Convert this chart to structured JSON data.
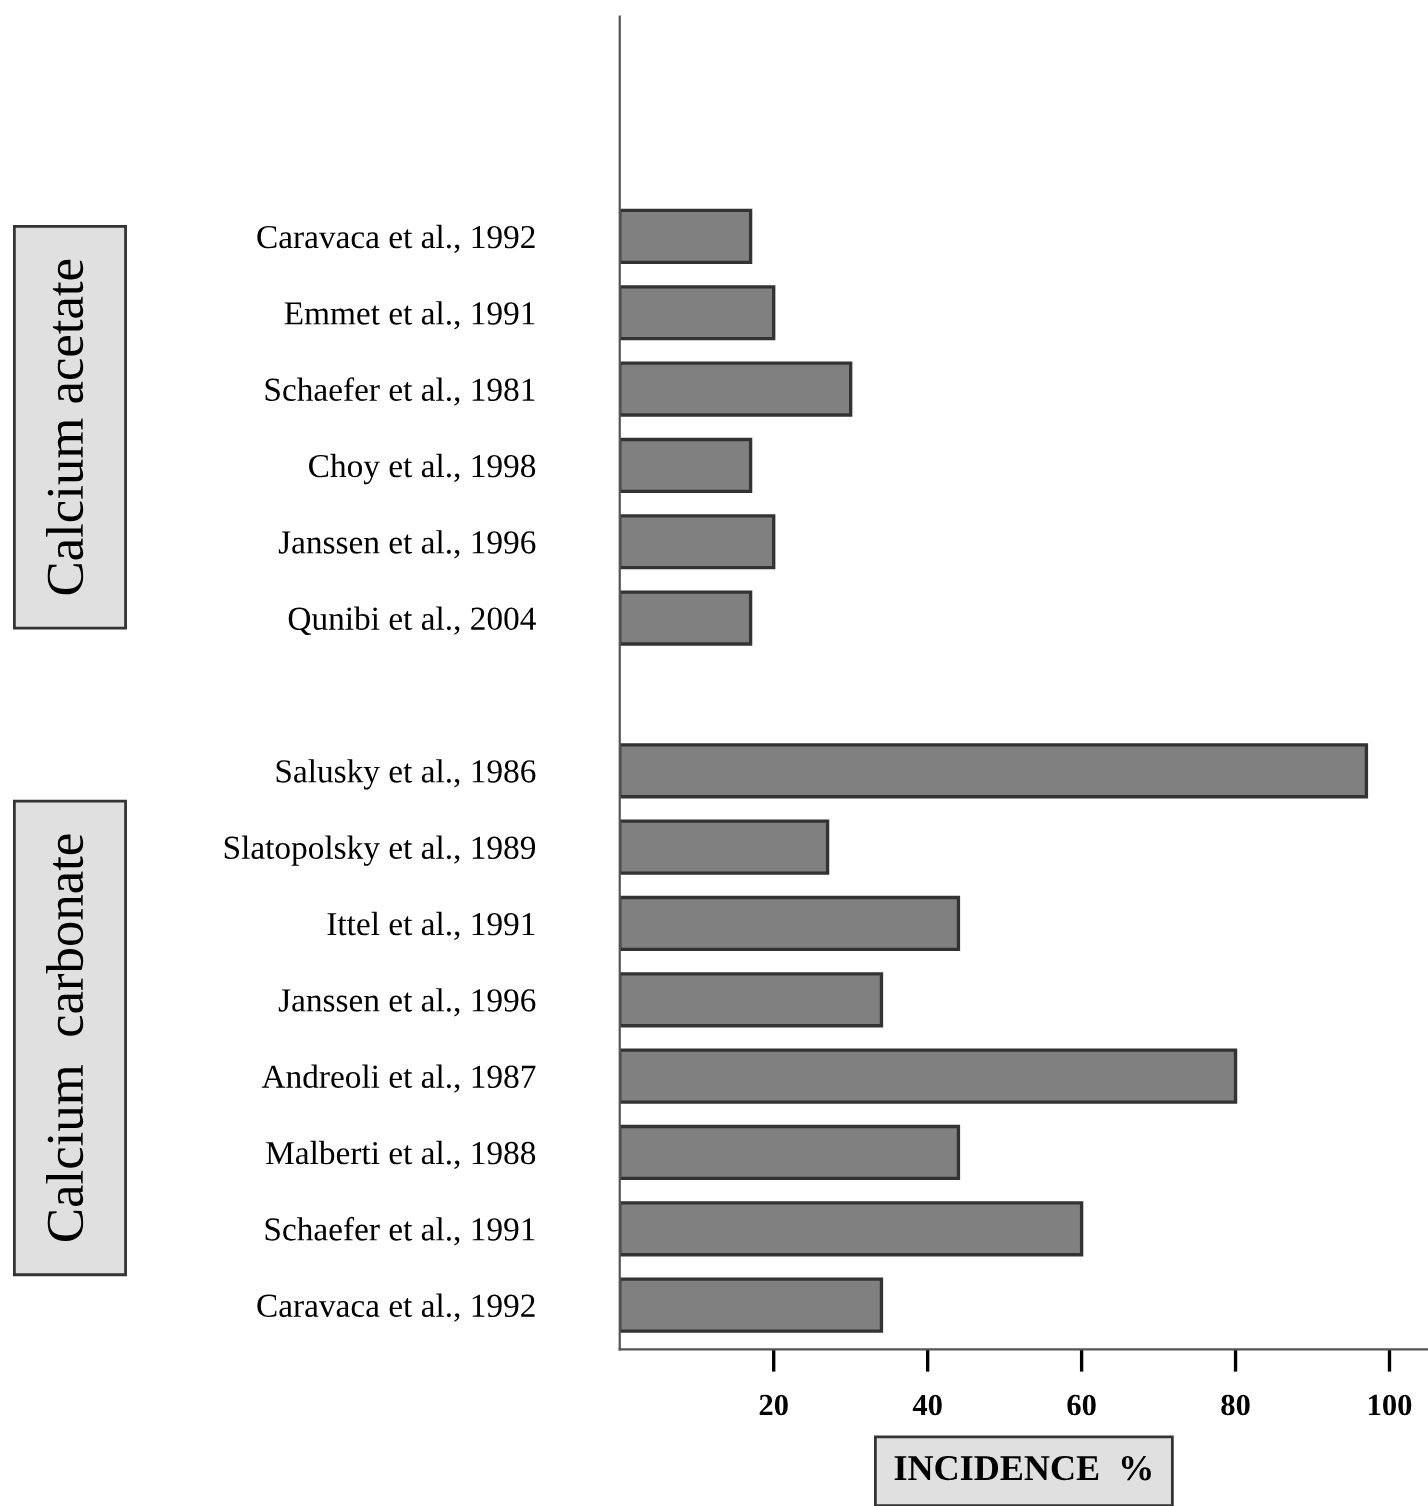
{
  "chart_data": {
    "type": "bar",
    "orientation": "horizontal",
    "categories": [
      "Caravaca et al., 1992",
      "Emmet et al., 1991",
      "Schaefer et al., 1981",
      "Choy et al., 1998",
      "Janssen et al., 1996",
      "Qunibi et al., 2004",
      null,
      "Salusky et al., 1986",
      "Slatopolsky et al., 1989",
      "Ittel et al., 1991",
      "Janssen et al., 1996",
      "Andreoli et al., 1987",
      "Malberti et al., 1988",
      "Schaefer et al., 1991",
      "Caravaca et al., 1992"
    ],
    "values": [
      17,
      20,
      30,
      17,
      20,
      17,
      null,
      97,
      27,
      44,
      34,
      80,
      44,
      60,
      34
    ],
    "color": "#808080",
    "xlabel": "INCIDENCE  %",
    "xlim": [
      0,
      105
    ],
    "xticks": [
      20,
      40,
      60,
      80,
      100
    ],
    "annotations": [
      "Calcium acetate",
      "Calcium  carbonate"
    ],
    "grid": false,
    "legend": false
  }
}
